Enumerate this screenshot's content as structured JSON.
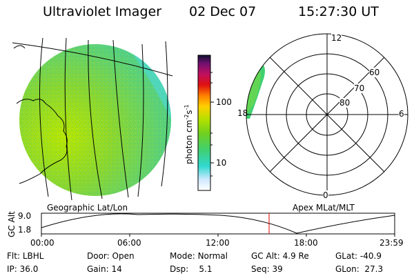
{
  "header": {
    "title": "Ultraviolet Imager",
    "date": "02 Dec 07",
    "time": "15:27:30 UT"
  },
  "colorbar": {
    "label": "photon cm",
    "label_exp1": "-2",
    "label_s": "s",
    "label_exp2": "-1",
    "ticks": [
      "100",
      "10"
    ]
  },
  "polar": {
    "labels": {
      "top": "12",
      "right": "6",
      "bottom": "0",
      "left": "18"
    },
    "rings": [
      "60",
      "70",
      "80"
    ]
  },
  "captions": {
    "left": "Geographic Lat/Lon",
    "right": "Apex MLat/MLT"
  },
  "altitude_plot": {
    "ylabel": "GC Alt",
    "y_top": "9.0",
    "y_bottom": "1.8",
    "x_ticks": [
      "00:00",
      "06:00",
      "12:00",
      "18:00",
      "23:59"
    ],
    "current_time_marker": "15:27:30",
    "marker_color": "#e00000"
  },
  "info": {
    "flt_label": "Flt:",
    "flt_value": "LBHL",
    "ip_label": "IP:",
    "ip_value": "36.0",
    "door_label": "Door:",
    "door_value": "Open",
    "gain_label": "Gain:",
    "gain_value": "14",
    "mode_label": "Mode:",
    "mode_value": "Normal",
    "dsp_label": "Dsp:",
    "dsp_value": "5.1",
    "gcalt_label": "GC Alt:",
    "gcalt_value": "4.9 Re",
    "seq_label": "Seq:",
    "seq_value": "39",
    "glat_label": "GLat:",
    "glat_value": "-40.9",
    "glon_label": "GLon:",
    "glon_value": "27.3"
  }
}
